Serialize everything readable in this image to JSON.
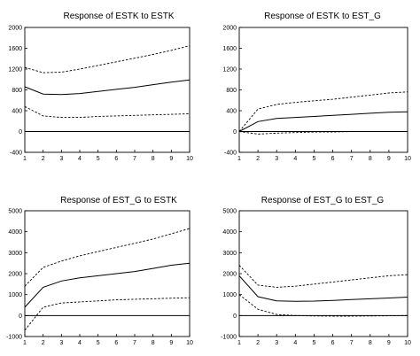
{
  "chart_data": [
    {
      "type": "line",
      "title": "Response of ESTK to ESTK",
      "x": [
        1,
        2,
        3,
        4,
        5,
        6,
        7,
        8,
        9,
        10
      ],
      "ylim": [
        -400,
        2000
      ],
      "yticks": [
        -400,
        0,
        400,
        800,
        1200,
        1600,
        2000
      ],
      "series": [
        {
          "role": "response",
          "style": "solid",
          "values": [
            860,
            720,
            710,
            730,
            770,
            810,
            850,
            900,
            950,
            990
          ]
        },
        {
          "role": "upper_band",
          "style": "dashed",
          "values": [
            1230,
            1130,
            1140,
            1200,
            1270,
            1340,
            1410,
            1480,
            1560,
            1650
          ]
        },
        {
          "role": "lower_band",
          "style": "dashed",
          "values": [
            480,
            300,
            270,
            270,
            290,
            300,
            310,
            320,
            330,
            340
          ]
        }
      ]
    },
    {
      "type": "line",
      "title": "Response of ESTK to EST_G",
      "x": [
        1,
        2,
        3,
        4,
        5,
        6,
        7,
        8,
        9,
        10
      ],
      "ylim": [
        -400,
        2000
      ],
      "yticks": [
        -400,
        0,
        400,
        800,
        1200,
        1600,
        2000
      ],
      "series": [
        {
          "role": "response",
          "style": "solid",
          "values": [
            0,
            190,
            250,
            270,
            290,
            310,
            330,
            350,
            370,
            380
          ]
        },
        {
          "role": "upper_band",
          "style": "dashed",
          "values": [
            0,
            430,
            520,
            560,
            590,
            620,
            660,
            700,
            740,
            760
          ]
        },
        {
          "role": "lower_band",
          "style": "dashed",
          "values": [
            0,
            -50,
            -30,
            -20,
            -10,
            -10,
            0,
            0,
            0,
            0
          ]
        }
      ]
    },
    {
      "type": "line",
      "title": "Response of EST_G to ESTK",
      "x": [
        1,
        2,
        3,
        4,
        5,
        6,
        7,
        8,
        9,
        10
      ],
      "ylim": [
        -1000,
        5000
      ],
      "yticks": [
        -1000,
        0,
        1000,
        2000,
        3000,
        4000,
        5000
      ],
      "series": [
        {
          "role": "response",
          "style": "solid",
          "values": [
            400,
            1350,
            1650,
            1800,
            1900,
            2000,
            2100,
            2250,
            2400,
            2500
          ]
        },
        {
          "role": "upper_band",
          "style": "dashed",
          "values": [
            1400,
            2300,
            2600,
            2850,
            3050,
            3250,
            3450,
            3650,
            3900,
            4150
          ]
        },
        {
          "role": "lower_band",
          "style": "dashed",
          "values": [
            -700,
            400,
            600,
            650,
            700,
            750,
            780,
            800,
            830,
            850
          ]
        }
      ]
    },
    {
      "type": "line",
      "title": "Response of EST_G to EST_G",
      "x": [
        1,
        2,
        3,
        4,
        5,
        6,
        7,
        8,
        9,
        10
      ],
      "ylim": [
        -1000,
        5000
      ],
      "yticks": [
        -1000,
        0,
        1000,
        2000,
        3000,
        4000,
        5000
      ],
      "series": [
        {
          "role": "response",
          "style": "solid",
          "values": [
            1900,
            900,
            700,
            680,
            690,
            720,
            760,
            800,
            840,
            880
          ]
        },
        {
          "role": "upper_band",
          "style": "dashed",
          "values": [
            2400,
            1450,
            1350,
            1400,
            1500,
            1600,
            1700,
            1800,
            1900,
            1950
          ]
        },
        {
          "role": "lower_band",
          "style": "dashed",
          "values": [
            1000,
            300,
            50,
            0,
            -20,
            -30,
            -30,
            -20,
            -10,
            0
          ]
        }
      ]
    }
  ]
}
